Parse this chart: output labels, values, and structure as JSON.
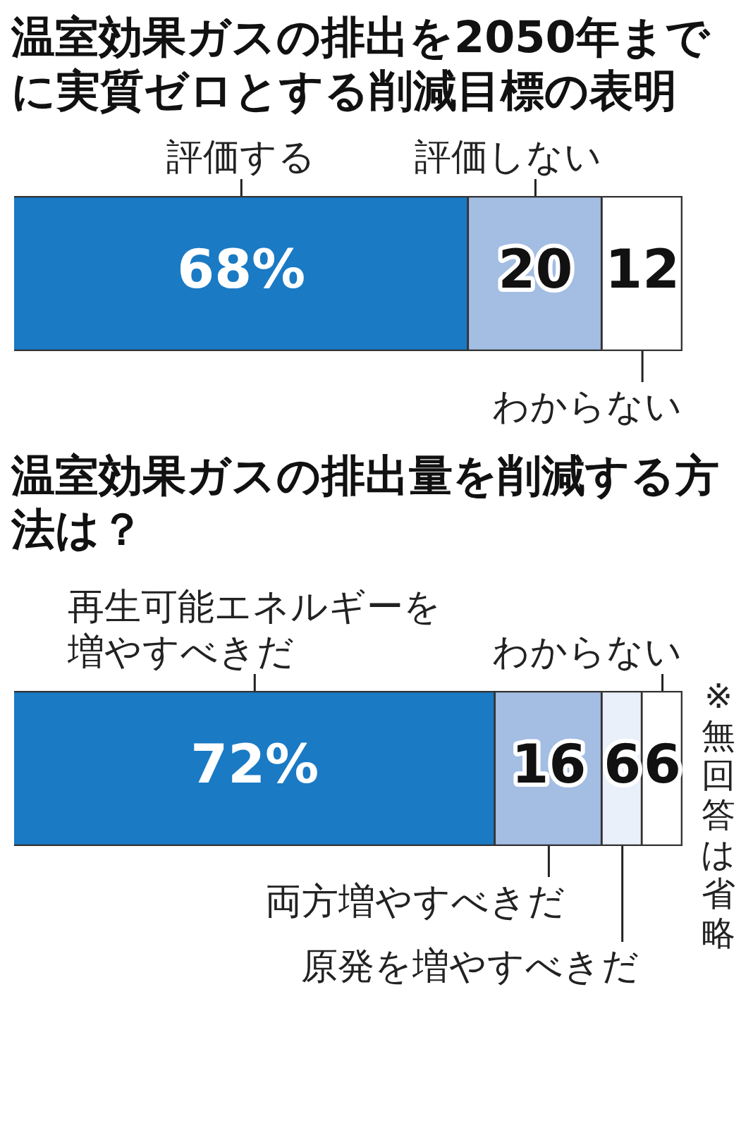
{
  "chart_data": [
    {
      "type": "bar",
      "orientation": "horizontal",
      "stacked": true,
      "title": "温室効果ガスの排出を2050年までに実質ゼロとする削減目標の表明",
      "categories": [
        null
      ],
      "xlim": [
        0,
        100
      ],
      "tick_labels": false,
      "series": [
        {
          "name": "評価する",
          "color": "#1a7ac4",
          "values": [
            68
          ],
          "value_labels": [
            "68%"
          ]
        },
        {
          "name": "評価しない",
          "color": "#a3bde3",
          "values": [
            20
          ],
          "value_labels": [
            "20"
          ]
        },
        {
          "name": "わからない",
          "color": "#ffffff",
          "values": [
            12
          ],
          "value_labels": [
            "12"
          ]
        }
      ]
    },
    {
      "type": "bar",
      "orientation": "horizontal",
      "stacked": true,
      "title": "温室効果ガスの排出量を削減する方法は？",
      "categories": [
        null
      ],
      "xlim": [
        0,
        100
      ],
      "tick_labels": false,
      "annotations": [
        "※無回答は省略"
      ],
      "series": [
        {
          "name": "再生可能エネルギーを増やすべきだ",
          "color": "#1a7ac4",
          "values": [
            72
          ],
          "value_labels": [
            "72%"
          ]
        },
        {
          "name": "両方増やすべきだ",
          "color": "#a3bde3",
          "values": [
            16
          ],
          "value_labels": [
            "16"
          ]
        },
        {
          "name": "原発を増やすべきだ",
          "color": "#e9f0fa",
          "values": [
            6
          ],
          "value_labels": [
            "6"
          ]
        },
        {
          "name": "わからない",
          "color": "#ffffff",
          "values": [
            6
          ],
          "value_labels": [
            "6"
          ]
        }
      ]
    }
  ]
}
